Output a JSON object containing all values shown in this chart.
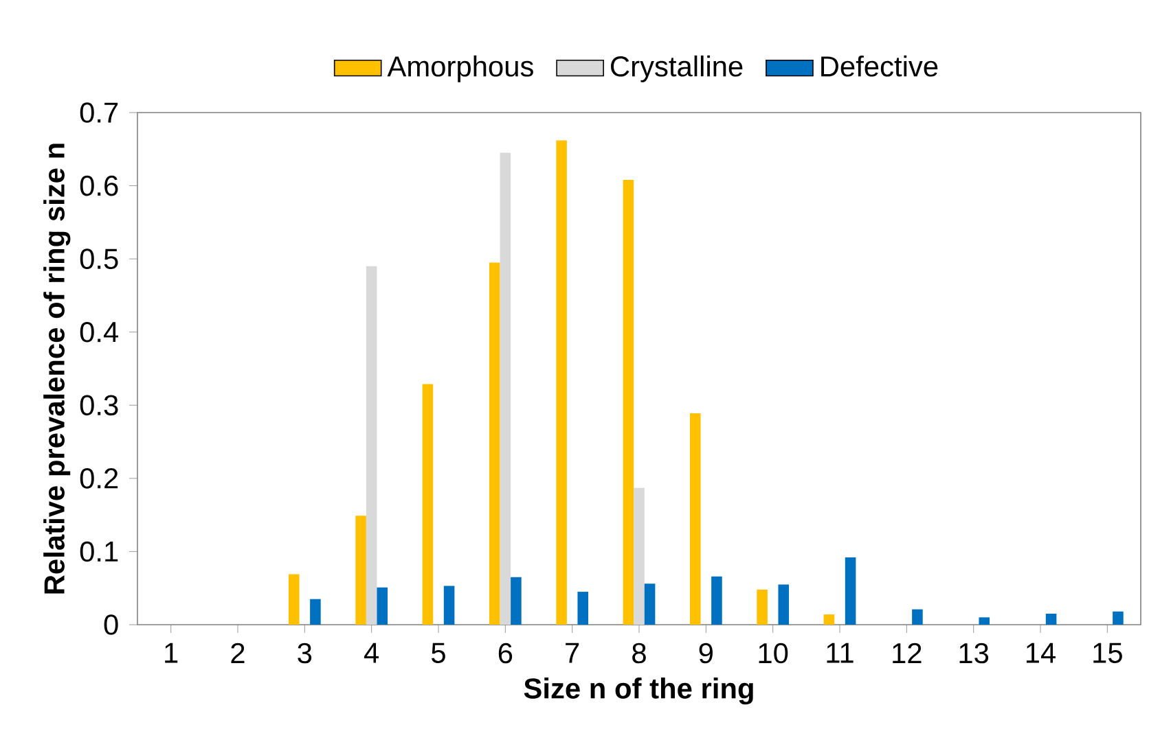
{
  "chart_data": {
    "type": "bar",
    "xlabel": "Size n of the ring",
    "ylabel": "Relative prevalence of ring size n",
    "categories": [
      "1",
      "2",
      "3",
      "4",
      "5",
      "6",
      "7",
      "8",
      "9",
      "10",
      "11",
      "12",
      "13",
      "14",
      "15"
    ],
    "series": [
      {
        "name": "Amorphous",
        "color": "#ffc000",
        "values": [
          null,
          null,
          0.069,
          0.149,
          0.329,
          0.495,
          0.662,
          0.608,
          0.289,
          0.048,
          0.014,
          null,
          null,
          null,
          null
        ]
      },
      {
        "name": "Crystalline",
        "color": "#d9d9d9",
        "values": [
          null,
          null,
          null,
          0.49,
          null,
          0.645,
          null,
          0.187,
          null,
          null,
          null,
          null,
          null,
          null,
          null
        ]
      },
      {
        "name": "Defective",
        "color": "#0070c0",
        "values": [
          null,
          null,
          0.035,
          0.051,
          0.053,
          0.065,
          0.045,
          0.056,
          0.066,
          0.055,
          0.092,
          0.021,
          0.01,
          0.015,
          0.018
        ]
      }
    ],
    "ylim": [
      0,
      0.7
    ],
    "yticks": [
      0,
      0.1,
      0.2,
      0.3,
      0.4,
      0.5,
      0.6,
      0.7
    ],
    "legend": "top",
    "grid": false
  }
}
